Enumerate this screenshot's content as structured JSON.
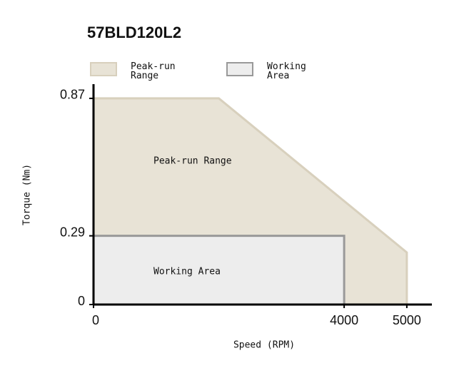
{
  "chart_data": {
    "type": "area",
    "title": "57BLD120L2",
    "x_label": "Speed (RPM)",
    "y_label": "Torque (Nm)",
    "xlim": [
      0,
      5400
    ],
    "ylim": [
      0,
      0.93
    ],
    "xticks": [
      0,
      4000,
      5000
    ],
    "yticks": [
      0,
      0.29,
      0.87
    ],
    "series": [
      {
        "name": "Peak-run Range",
        "color": "#e8e3d6",
        "stroke": "#d8d0bd",
        "x": [
          0,
          2000,
          5000,
          5000
        ],
        "values": [
          0.87,
          0.87,
          0.22,
          0
        ]
      },
      {
        "name": "Working Area",
        "color": "#ededed",
        "stroke": "#999999",
        "x": [
          0,
          4000,
          4000
        ],
        "values": [
          0.29,
          0.29,
          0
        ]
      }
    ]
  }
}
